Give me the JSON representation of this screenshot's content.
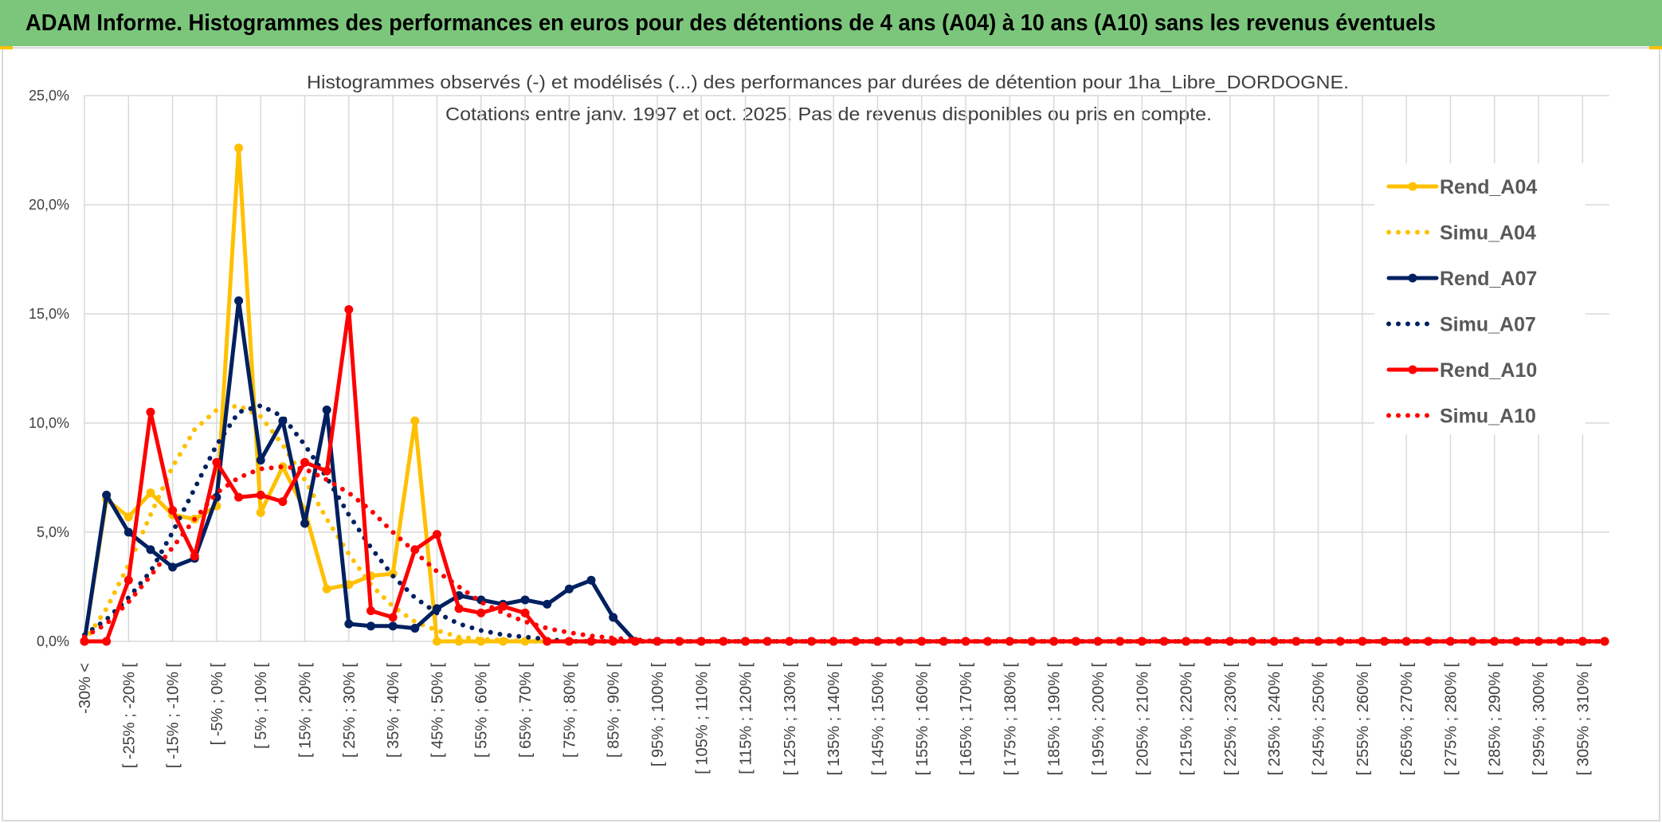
{
  "header": {
    "title": "ADAM Informe. Histogrammes des performances en euros pour des détentions de 4 ans (A04) à 10 ans (A10) sans les revenus éventuels"
  },
  "chart_data": {
    "type": "line",
    "title": "Histogrammes observés (-) et modélisés (...) des performances par durées de détention pour 1ha_Libre_DORDOGNE.",
    "subtitle": "Cotations entre janv. 1997 et oct. 2025. Pas de revenus disponibles ou pris en compte.",
    "categories": [
      "-30% <",
      null,
      "[ -25% ; -20% [",
      null,
      "[ -15% ; -10% [",
      null,
      "[ -5% ; 0% [",
      null,
      "[ 5% ; 10% [",
      null,
      "[ 15% ; 20% [",
      null,
      "[ 25% ; 30% [",
      null,
      "[ 35% ; 40% [",
      null,
      "[ 45% ; 50% [",
      null,
      "[ 55% ; 60% [",
      null,
      "[ 65% ; 70% [",
      null,
      "[ 75% ; 80% [",
      null,
      "[ 85% ; 90% [",
      null,
      "[ 95% ; 100% [",
      null,
      "[ 105% ; 110% [",
      null,
      "[ 115% ; 120% [",
      null,
      "[ 125% ; 130% [",
      null,
      "[ 135% ; 140% [",
      null,
      "[ 145% ; 150% [",
      null,
      "[ 155% ; 160% [",
      null,
      "[ 165% ; 170% [",
      null,
      "[ 175% ; 180% [",
      null,
      "[ 185% ; 190% [",
      null,
      "[ 195% ; 200% [",
      null,
      "[ 205% ; 210% [",
      null,
      "[ 215% ; 220% [",
      null,
      "[ 225% ; 230% [",
      null,
      "[ 235% ; 240% [",
      null,
      "[ 245% ; 250% [",
      null,
      "[ 255% ; 260% [",
      null,
      "[ 265% ; 270% [",
      null,
      "[ 275% ; 280% [",
      null,
      "[ 285% ; 290% [",
      null,
      "[ 295% ; 300% [",
      null,
      "[ 305% ; 310% [",
      null
    ],
    "ylim": [
      0,
      25
    ],
    "yticks": [
      {
        "value": 0,
        "label": "0,0%"
      },
      {
        "value": 5,
        "label": "5,0%"
      },
      {
        "value": 10,
        "label": "10,0%"
      },
      {
        "value": 15,
        "label": "15,0%"
      },
      {
        "value": 20,
        "label": "20,0%"
      },
      {
        "value": 25,
        "label": "25,0%"
      }
    ],
    "grid": true,
    "legend": "right",
    "series": [
      {
        "name": "Rend_A04",
        "color": "#FFC000",
        "style": "solid",
        "values": [
          0,
          6.5,
          5.7,
          6.8,
          5.8,
          5.6,
          6.2,
          22.6,
          5.9,
          8.0,
          6.0,
          2.4,
          2.6,
          3.0,
          3.1,
          10.1,
          0,
          0,
          0,
          0,
          0,
          0,
          0,
          0,
          0,
          0,
          0,
          0,
          0,
          0,
          0,
          0,
          0,
          0,
          0,
          0,
          0,
          0,
          0,
          0,
          0,
          0,
          0,
          0,
          0,
          0,
          0,
          0,
          0,
          0,
          0,
          0,
          0,
          0,
          0,
          0,
          0,
          0,
          0,
          0,
          0,
          0,
          0,
          0,
          0,
          0,
          0,
          0,
          0,
          0
        ]
      },
      {
        "name": "Simu_A04",
        "color": "#FFC000",
        "style": "dotted",
        "values": [
          0,
          1.5,
          3.5,
          5.8,
          8,
          9.7,
          10.6,
          10.8,
          10.3,
          9.0,
          7.4,
          5.6,
          4.0,
          2.6,
          1.6,
          0.9,
          0.5,
          0.2,
          0.1,
          0.05,
          0,
          0,
          0,
          0,
          0,
          0,
          0,
          0,
          0,
          0,
          0,
          0,
          0,
          0,
          0,
          0,
          0,
          0,
          0,
          0,
          0,
          0,
          0,
          0,
          0,
          0,
          0,
          0,
          0,
          0,
          0,
          0,
          0,
          0,
          0,
          0,
          0,
          0,
          0,
          0,
          0,
          0,
          0,
          0,
          0,
          0,
          0,
          0,
          0,
          0
        ]
      },
      {
        "name": "Rend_A07",
        "color": "#002060",
        "style": "solid",
        "values": [
          0,
          6.7,
          5.0,
          4.2,
          3.4,
          3.8,
          6.6,
          15.6,
          8.3,
          10.1,
          5.4,
          10.6,
          0.8,
          0.7,
          0.7,
          0.6,
          1.5,
          2.1,
          1.9,
          1.7,
          1.9,
          1.7,
          2.4,
          2.8,
          1.1,
          0,
          0,
          0,
          0,
          0,
          0,
          0,
          0,
          0,
          0,
          0,
          0,
          0,
          0,
          0,
          0,
          0,
          0,
          0,
          0,
          0,
          0,
          0,
          0,
          0,
          0,
          0,
          0,
          0,
          0,
          0,
          0,
          0,
          0,
          0,
          0,
          0,
          0,
          0,
          0,
          0,
          0,
          0,
          0,
          0
        ]
      },
      {
        "name": "Simu_A07",
        "color": "#002060",
        "style": "dotted",
        "values": [
          0.3,
          1,
          2,
          3.2,
          5,
          7,
          9,
          10.5,
          10.8,
          10.3,
          9,
          7.5,
          5.8,
          4.3,
          3,
          2,
          1.3,
          0.8,
          0.5,
          0.3,
          0.2,
          0.1,
          0,
          0,
          0,
          0,
          0,
          0,
          0,
          0,
          0,
          0,
          0,
          0,
          0,
          0,
          0,
          0,
          0,
          0,
          0,
          0,
          0,
          0,
          0,
          0,
          0,
          0,
          0,
          0,
          0,
          0,
          0,
          0,
          0,
          0,
          0,
          0,
          0,
          0,
          0,
          0,
          0,
          0,
          0,
          0,
          0,
          0,
          0,
          0
        ]
      },
      {
        "name": "Rend_A10",
        "color": "#FF0000",
        "style": "solid",
        "values": [
          0,
          0,
          2.8,
          10.5,
          6.0,
          3.9,
          8.2,
          6.6,
          6.7,
          6.4,
          8.2,
          7.8,
          15.2,
          1.4,
          1.1,
          4.2,
          4.9,
          1.5,
          1.3,
          1.6,
          1.3,
          0,
          0,
          0,
          0,
          0,
          0,
          0,
          0,
          0,
          0,
          0,
          0,
          0,
          0,
          0,
          0,
          0,
          0,
          0,
          0,
          0,
          0,
          0,
          0,
          0,
          0,
          0,
          0,
          0,
          0,
          0,
          0,
          0,
          0,
          0,
          0,
          0,
          0,
          0,
          0,
          0,
          0,
          0,
          0,
          0,
          0,
          0,
          0,
          0
        ]
      },
      {
        "name": "Simu_A10",
        "color": "#FF0000",
        "style": "dotted",
        "values": [
          0.2,
          0.8,
          1.8,
          3,
          4.3,
          5.6,
          6.8,
          7.5,
          7.9,
          8.0,
          7.9,
          7.4,
          6.8,
          6,
          5,
          4.1,
          3.2,
          2.5,
          1.8,
          1.3,
          0.9,
          0.6,
          0.4,
          0.25,
          0.15,
          0.08,
          0,
          0,
          0,
          0,
          0,
          0,
          0,
          0,
          0,
          0,
          0,
          0,
          0,
          0,
          0,
          0,
          0,
          0,
          0,
          0,
          0,
          0,
          0,
          0,
          0,
          0,
          0,
          0,
          0,
          0,
          0,
          0,
          0,
          0,
          0,
          0,
          0,
          0,
          0,
          0,
          0,
          0,
          0,
          0
        ]
      }
    ]
  }
}
